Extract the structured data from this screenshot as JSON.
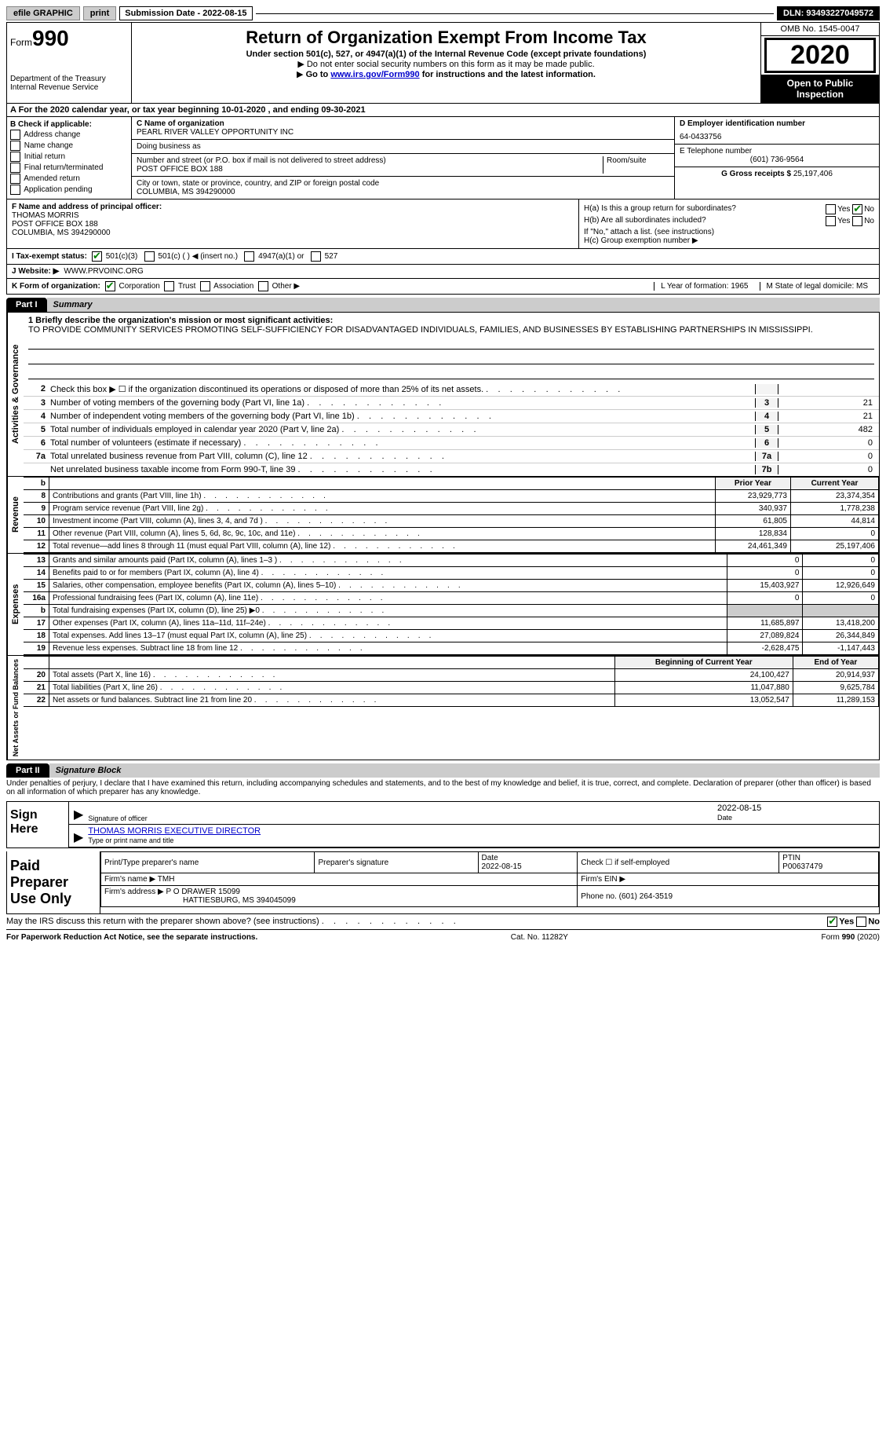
{
  "topbar": {
    "efile": "efile GRAPHIC",
    "print": "print",
    "submission": "Submission Date - 2022-08-15",
    "dln": "DLN: 93493227049572"
  },
  "header": {
    "form": "Form",
    "form_num": "990",
    "dept1": "Department of the Treasury",
    "dept2": "Internal Revenue Service",
    "title": "Return of Organization Exempt From Income Tax",
    "subtitle": "Under section 501(c), 527, or 4947(a)(1) of the Internal Revenue Code (except private foundations)",
    "note1": "Do not enter social security numbers on this form as it may be made public.",
    "note2_pre": "Go to ",
    "note2_link": "www.irs.gov/Form990",
    "note2_post": " for instructions and the latest information.",
    "omb": "OMB No. 1545-0047",
    "year": "2020",
    "open": "Open to Public Inspection"
  },
  "rowA": "A For the 2020 calendar year, or tax year beginning 10-01-2020   , and ending 09-30-2021",
  "B": {
    "hdr": "B Check if applicable:",
    "items": [
      "Address change",
      "Name change",
      "Initial return",
      "Final return/terminated",
      "Amended return",
      "Application pending"
    ]
  },
  "C": {
    "name_lbl": "C Name of organization",
    "name": "PEARL RIVER VALLEY OPPORTUNITY INC",
    "dba_lbl": "Doing business as",
    "addr_lbl": "Number and street (or P.O. box if mail is not delivered to street address)",
    "room_lbl": "Room/suite",
    "addr": "POST OFFICE BOX 188",
    "city_lbl": "City or town, state or province, country, and ZIP or foreign postal code",
    "city": "COLUMBIA, MS  394290000"
  },
  "D": {
    "lbl": "D Employer identification number",
    "val": "64-0433756"
  },
  "E": {
    "lbl": "E Telephone number",
    "val": "(601) 736-9564"
  },
  "G": {
    "lbl": "G Gross receipts $",
    "val": "25,197,406"
  },
  "F": {
    "lbl": "F Name and address of principal officer:",
    "name": "THOMAS MORRIS",
    "addr1": "POST OFFICE BOX 188",
    "addr2": "COLUMBIA, MS  394290000"
  },
  "H": {
    "a": "H(a)  Is this a group return for subordinates?",
    "b": "H(b)  Are all subordinates included?",
    "b_note": "If \"No,\" attach a list. (see instructions)",
    "c": "H(c)  Group exemption number ▶",
    "yes": "Yes",
    "no": "No"
  },
  "I": {
    "lbl": "I   Tax-exempt status:",
    "opts": [
      "501(c)(3)",
      "501(c) (  ) ◀ (insert no.)",
      "4947(a)(1) or",
      "527"
    ]
  },
  "J": {
    "lbl": "J   Website: ▶",
    "val": "WWW.PRVOINC.ORG"
  },
  "K": {
    "lbl": "K Form of organization:",
    "opts": [
      "Corporation",
      "Trust",
      "Association",
      "Other ▶"
    ]
  },
  "L": {
    "lbl": "L Year of formation: 1965"
  },
  "M": {
    "lbl": "M State of legal domicile: MS"
  },
  "part1": {
    "tab": "Part I",
    "title": "Summary"
  },
  "mission": {
    "q": "1  Briefly describe the organization's mission or most significant activities:",
    "text": "TO PROVIDE COMMUNITY SERVICES PROMOTING SELF-SUFFICIENCY FOR DISADVANTAGED INDIVIDUALS, FAMILIES, AND BUSINESSES BY ESTABLISHING PARTNERSHIPS IN MISSISSIPPI."
  },
  "gov_lines": [
    {
      "n": "2",
      "t": "Check this box ▶ ☐  if the organization discontinued its operations or disposed of more than 25% of its net assets.",
      "box": "",
      "v": ""
    },
    {
      "n": "3",
      "t": "Number of voting members of the governing body (Part VI, line 1a)",
      "box": "3",
      "v": "21"
    },
    {
      "n": "4",
      "t": "Number of independent voting members of the governing body (Part VI, line 1b)",
      "box": "4",
      "v": "21"
    },
    {
      "n": "5",
      "t": "Total number of individuals employed in calendar year 2020 (Part V, line 2a)",
      "box": "5",
      "v": "482"
    },
    {
      "n": "6",
      "t": "Total number of volunteers (estimate if necessary)",
      "box": "6",
      "v": "0"
    },
    {
      "n": "7a",
      "t": "Total unrelated business revenue from Part VIII, column (C), line 12",
      "box": "7a",
      "v": "0"
    },
    {
      "n": "",
      "t": "Net unrelated business taxable income from Form 990-T, line 39",
      "box": "7b",
      "v": "0"
    }
  ],
  "fin_hdr": {
    "b": "b",
    "prior": "Prior Year",
    "current": "Current Year"
  },
  "revenue": [
    {
      "n": "8",
      "t": "Contributions and grants (Part VIII, line 1h)",
      "p": "23,929,773",
      "c": "23,374,354"
    },
    {
      "n": "9",
      "t": "Program service revenue (Part VIII, line 2g)",
      "p": "340,937",
      "c": "1,778,238"
    },
    {
      "n": "10",
      "t": "Investment income (Part VIII, column (A), lines 3, 4, and 7d )",
      "p": "61,805",
      "c": "44,814"
    },
    {
      "n": "11",
      "t": "Other revenue (Part VIII, column (A), lines 5, 6d, 8c, 9c, 10c, and 11e)",
      "p": "128,834",
      "c": "0"
    },
    {
      "n": "12",
      "t": "Total revenue—add lines 8 through 11 (must equal Part VIII, column (A), line 12)",
      "p": "24,461,349",
      "c": "25,197,406"
    }
  ],
  "expenses": [
    {
      "n": "13",
      "t": "Grants and similar amounts paid (Part IX, column (A), lines 1–3 )",
      "p": "0",
      "c": "0"
    },
    {
      "n": "14",
      "t": "Benefits paid to or for members (Part IX, column (A), line 4)",
      "p": "0",
      "c": "0"
    },
    {
      "n": "15",
      "t": "Salaries, other compensation, employee benefits (Part IX, column (A), lines 5–10)",
      "p": "15,403,927",
      "c": "12,926,649"
    },
    {
      "n": "16a",
      "t": "Professional fundraising fees (Part IX, column (A), line 11e)",
      "p": "0",
      "c": "0"
    },
    {
      "n": "b",
      "t": "Total fundraising expenses (Part IX, column (D), line 25) ▶0",
      "p": "shade",
      "c": "shade"
    },
    {
      "n": "17",
      "t": "Other expenses (Part IX, column (A), lines 11a–11d, 11f–24e)",
      "p": "11,685,897",
      "c": "13,418,200"
    },
    {
      "n": "18",
      "t": "Total expenses. Add lines 13–17 (must equal Part IX, column (A), line 25)",
      "p": "27,089,824",
      "c": "26,344,849"
    },
    {
      "n": "19",
      "t": "Revenue less expenses. Subtract line 18 from line 12",
      "p": "-2,628,475",
      "c": "-1,147,443"
    }
  ],
  "net_hdr": {
    "begin": "Beginning of Current Year",
    "end": "End of Year"
  },
  "netassets": [
    {
      "n": "20",
      "t": "Total assets (Part X, line 16)",
      "p": "24,100,427",
      "c": "20,914,937"
    },
    {
      "n": "21",
      "t": "Total liabilities (Part X, line 26)",
      "p": "11,047,880",
      "c": "9,625,784"
    },
    {
      "n": "22",
      "t": "Net assets or fund balances. Subtract line 21 from line 20",
      "p": "13,052,547",
      "c": "11,289,153"
    }
  ],
  "part2": {
    "tab": "Part II",
    "title": "Signature Block"
  },
  "sig": {
    "decl": "Under penalties of perjury, I declare that I have examined this return, including accompanying schedules and statements, and to the best of my knowledge and belief, it is true, correct, and complete. Declaration of preparer (other than officer) is based on all information of which preparer has any knowledge.",
    "sign_here": "Sign Here",
    "sig_officer": "Signature of officer",
    "date": "Date",
    "date_val": "2022-08-15",
    "name": "THOMAS MORRIS  EXECUTIVE DIRECTOR",
    "name_lbl": "Type or print name and title"
  },
  "paid": {
    "hdr": "Paid Preparer Use Only",
    "r1": {
      "a": "Print/Type preparer's name",
      "b": "Preparer's signature",
      "c": "Date",
      "cv": "2022-08-15",
      "d": "Check ☐ if self-employed",
      "e": "PTIN",
      "ev": "P00637479"
    },
    "r2": {
      "a": "Firm's name   ▶ TMH",
      "b": "Firm's EIN ▶"
    },
    "r3": {
      "a": "Firm's address ▶ P O DRAWER 15099",
      "a2": "HATTIESBURG, MS  394045099",
      "b": "Phone no. (601) 264-3519"
    }
  },
  "discuss": "May the IRS discuss this return with the preparer shown above? (see instructions)",
  "footer": {
    "left": "For Paperwork Reduction Act Notice, see the separate instructions.",
    "mid": "Cat. No. 11282Y",
    "right": "Form 990 (2020)"
  },
  "sidelabels": {
    "gov": "Activities & Governance",
    "rev": "Revenue",
    "exp": "Expenses",
    "net": "Net Assets or Fund Balances"
  }
}
